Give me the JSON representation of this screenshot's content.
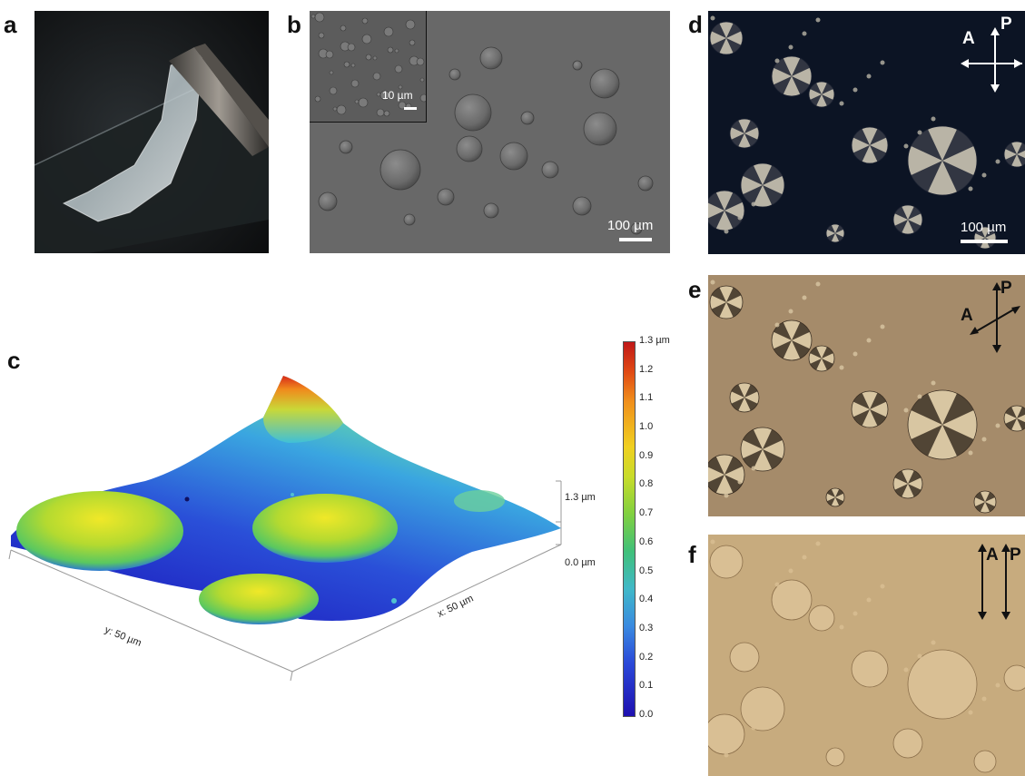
{
  "figure": {
    "panel_labels": [
      "a",
      "b",
      "c",
      "d",
      "e",
      "f"
    ],
    "panel_b": {
      "inset_scale": "10 µm",
      "scale": "100 µm"
    },
    "panel_c": {
      "colorbar_ticks": [
        "1.3 µm",
        "1.2",
        "1.1",
        "1.0",
        "0.9",
        "0.8",
        "0.7",
        "0.6",
        "0.5",
        "0.4",
        "0.3",
        "0.2",
        "0.1",
        "0.0"
      ],
      "z_axis_top": "1.3 µm",
      "z_axis_bottom": "0.0 µm",
      "y_axis": "y: 50 µm",
      "x_axis": "x: 50 µm"
    },
    "panel_d": {
      "analyzer": "A",
      "polarizer": "P",
      "scale": "100 µm"
    },
    "panel_e": {
      "analyzer": "A",
      "polarizer": "P"
    },
    "panel_f": {
      "analyzer": "A",
      "polarizer": "P"
    }
  }
}
